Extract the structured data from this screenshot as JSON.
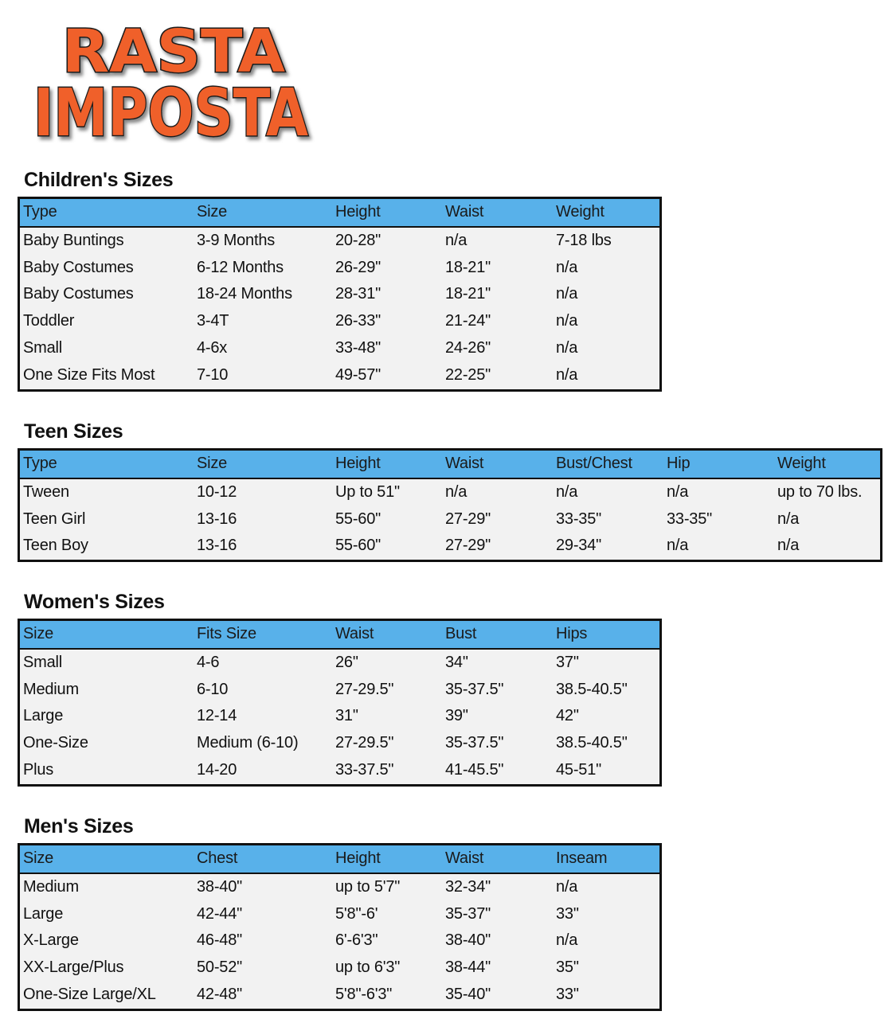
{
  "logo": {
    "line1": "RASTA",
    "line2": "IMPOSTA"
  },
  "colors": {
    "header_bg": "#58b1ea",
    "body_bg": "#f2f2f2",
    "logo_orange": "#f0602a"
  },
  "sections": [
    {
      "title": "Children's Sizes",
      "columns": [
        "Type",
        "Size",
        "Height",
        "Waist",
        "Weight"
      ],
      "rows": [
        [
          "Baby Buntings",
          "3-9 Months",
          "20-28\"",
          "n/a",
          "7-18 lbs"
        ],
        [
          "Baby Costumes",
          "6-12 Months",
          "26-29\"",
          "18-21\"",
          "n/a"
        ],
        [
          "Baby Costumes",
          "18-24 Months",
          "28-31\"",
          "18-21\"",
          "n/a"
        ],
        [
          "Toddler",
          "3-4T",
          "26-33\"",
          "21-24\"",
          "n/a"
        ],
        [
          "Small",
          "4-6x",
          "33-48\"",
          "24-26\"",
          "n/a"
        ],
        [
          "One Size Fits Most",
          "7-10",
          "49-57\"",
          "22-25\"",
          "n/a"
        ]
      ]
    },
    {
      "title": "Teen Sizes",
      "columns": [
        "Type",
        "Size",
        "Height",
        "Waist",
        "Bust/Chest",
        "Hip",
        "Weight"
      ],
      "rows": [
        [
          "Tween",
          "10-12",
          "Up to 51\"",
          "n/a",
          "n/a",
          "n/a",
          "up to 70 lbs."
        ],
        [
          "Teen Girl",
          "13-16",
          "55-60\"",
          "27-29\"",
          "33-35\"",
          "33-35\"",
          "n/a"
        ],
        [
          "Teen Boy",
          "13-16",
          "55-60\"",
          "27-29\"",
          "29-34\"",
          "n/a",
          "n/a"
        ]
      ]
    },
    {
      "title": "Women's Sizes",
      "columns": [
        "Size",
        "Fits Size",
        "Waist",
        "Bust",
        "Hips"
      ],
      "rows": [
        [
          "Small",
          "4-6",
          "26\"",
          "34\"",
          "37\""
        ],
        [
          "Medium",
          "6-10",
          "27-29.5\"",
          "35-37.5\"",
          "38.5-40.5\""
        ],
        [
          "Large",
          "12-14",
          "31\"",
          "39\"",
          "42\""
        ],
        [
          "One-Size",
          "Medium (6-10)",
          "27-29.5\"",
          "35-37.5\"",
          "38.5-40.5\""
        ],
        [
          "Plus",
          "14-20",
          "33-37.5\"",
          "41-45.5\"",
          "45-51\""
        ]
      ]
    },
    {
      "title": "Men's Sizes",
      "columns": [
        "Size",
        "Chest",
        "Height",
        "Waist",
        "Inseam"
      ],
      "rows": [
        [
          "Medium",
          "38-40\"",
          "up to 5'7\"",
          "32-34\"",
          "n/a"
        ],
        [
          "Large",
          "42-44\"",
          "5'8\"-6'",
          "35-37\"",
          "33\""
        ],
        [
          "X-Large",
          "46-48\"",
          "6'-6'3\"",
          "38-40\"",
          "n/a"
        ],
        [
          "XX-Large/Plus",
          "50-52\"",
          "up to 6'3\"",
          "38-44\"",
          "35\""
        ],
        [
          "One-Size Large/XL",
          "42-48\"",
          "5'8\"-6'3\"",
          "35-40\"",
          "33\""
        ]
      ]
    }
  ]
}
